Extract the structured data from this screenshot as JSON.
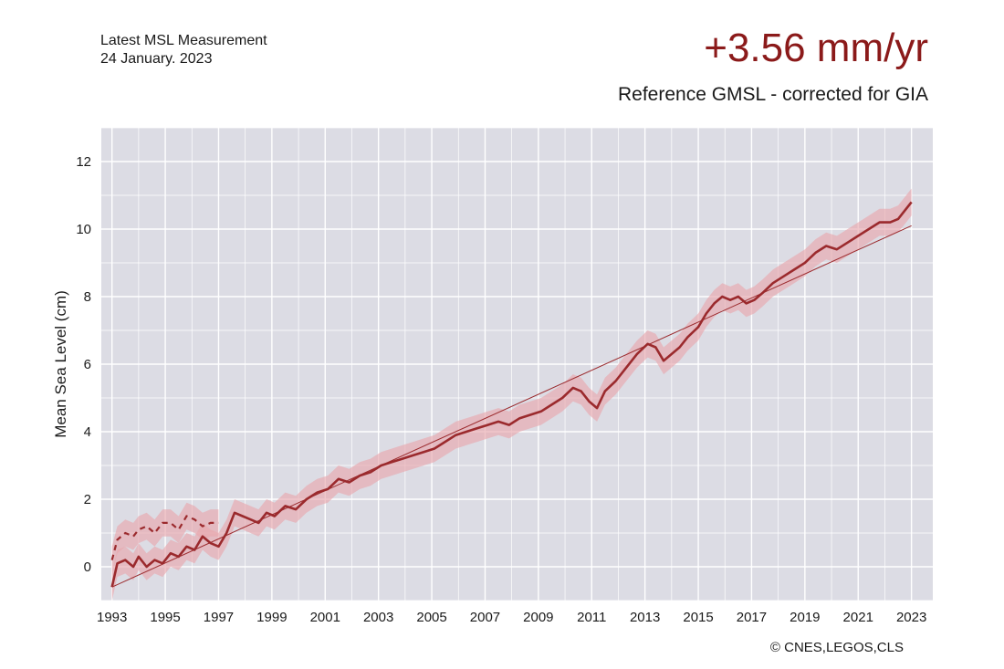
{
  "header": {
    "measurement_title": "Latest MSL Measurement",
    "measurement_date": "24 January. 2023",
    "rate": "+3.56 mm/yr",
    "subtitle": "Reference GMSL - corrected for GIA"
  },
  "footer": {
    "copyright": "© CNES,LEGOS,CLS"
  },
  "colors": {
    "line": "#9b2a2d",
    "band": "#e8a7ae",
    "plot_bg": "#dcdce4",
    "grid": "#ffffff",
    "rate_text": "#8b1a1a"
  },
  "chart_data": {
    "type": "line",
    "title": "+3.56 mm/yr",
    "subtitle": "Reference GMSL - corrected for GIA",
    "xlabel": "",
    "ylabel": "Mean Sea Level (cm)",
    "xlim": [
      1992.6,
      2023.8
    ],
    "ylim": [
      -1,
      13
    ],
    "x_ticks": [
      1993,
      1995,
      1997,
      1999,
      2001,
      2003,
      2005,
      2007,
      2009,
      2011,
      2013,
      2015,
      2017,
      2019,
      2021,
      2023
    ],
    "y_ticks": [
      0,
      2,
      4,
      6,
      8,
      10,
      12
    ],
    "grid": true,
    "uncertainty_halfwidth": 0.4,
    "series": [
      {
        "style": "solid",
        "x": [
          1993.0,
          1993.2,
          1993.5,
          1993.8,
          1994.0,
          1994.3,
          1994.6,
          1994.9,
          1995.2,
          1995.5,
          1995.8,
          1996.1,
          1996.4,
          1996.7,
          1997.0,
          1997.3,
          1997.6,
          1997.9,
          1998.2,
          1998.5,
          1998.8,
          1999.1,
          1999.5,
          1999.9,
          2000.3,
          2000.7,
          2001.1,
          2001.5,
          2001.9,
          2002.3,
          2002.7,
          2003.1,
          2003.5,
          2003.9,
          2004.3,
          2004.7,
          2005.1,
          2005.5,
          2005.9,
          2006.3,
          2006.7,
          2007.1,
          2007.5,
          2007.9,
          2008.3,
          2008.7,
          2009.1,
          2009.5,
          2009.9,
          2010.3,
          2010.6,
          2010.9,
          2011.2,
          2011.5,
          2011.9,
          2012.3,
          2012.7,
          2013.1,
          2013.4,
          2013.7,
          2014.0,
          2014.3,
          2014.6,
          2015.0,
          2015.3,
          2015.6,
          2015.9,
          2016.2,
          2016.5,
          2016.8,
          2017.1,
          2017.4,
          2017.8,
          2018.2,
          2018.6,
          2019.0,
          2019.4,
          2019.8,
          2020.2,
          2020.6,
          2021.0,
          2021.4,
          2021.8,
          2022.2,
          2022.5,
          2022.8,
          2023.0
        ],
        "y": [
          -0.6,
          0.1,
          0.2,
          0.0,
          0.3,
          0.0,
          0.2,
          0.1,
          0.4,
          0.3,
          0.6,
          0.5,
          0.9,
          0.7,
          0.6,
          1.0,
          1.6,
          1.5,
          1.4,
          1.3,
          1.6,
          1.5,
          1.8,
          1.7,
          2.0,
          2.2,
          2.3,
          2.6,
          2.5,
          2.7,
          2.8,
          3.0,
          3.1,
          3.2,
          3.3,
          3.4,
          3.5,
          3.7,
          3.9,
          4.0,
          4.1,
          4.2,
          4.3,
          4.2,
          4.4,
          4.5,
          4.6,
          4.8,
          5.0,
          5.3,
          5.2,
          4.9,
          4.7,
          5.2,
          5.5,
          5.9,
          6.3,
          6.6,
          6.5,
          6.1,
          6.3,
          6.5,
          6.8,
          7.1,
          7.5,
          7.8,
          8.0,
          7.9,
          8.0,
          7.8,
          7.9,
          8.1,
          8.4,
          8.6,
          8.8,
          9.0,
          9.3,
          9.5,
          9.4,
          9.6,
          9.8,
          10.0,
          10.2,
          10.2,
          10.3,
          10.6,
          10.8
        ]
      },
      {
        "style": "dashed",
        "x": [
          1993.0,
          1993.2,
          1993.5,
          1993.8,
          1994.0,
          1994.3,
          1994.6,
          1994.9,
          1995.2,
          1995.5,
          1995.8,
          1996.1,
          1996.4,
          1996.7,
          1997.0
        ],
        "y": [
          0.2,
          0.8,
          1.0,
          0.9,
          1.1,
          1.2,
          1.0,
          1.3,
          1.3,
          1.1,
          1.5,
          1.4,
          1.2,
          1.3,
          1.3
        ]
      },
      {
        "style": "trend",
        "x": [
          1993.0,
          2023.0
        ],
        "y": [
          -0.6,
          10.1
        ]
      }
    ]
  }
}
